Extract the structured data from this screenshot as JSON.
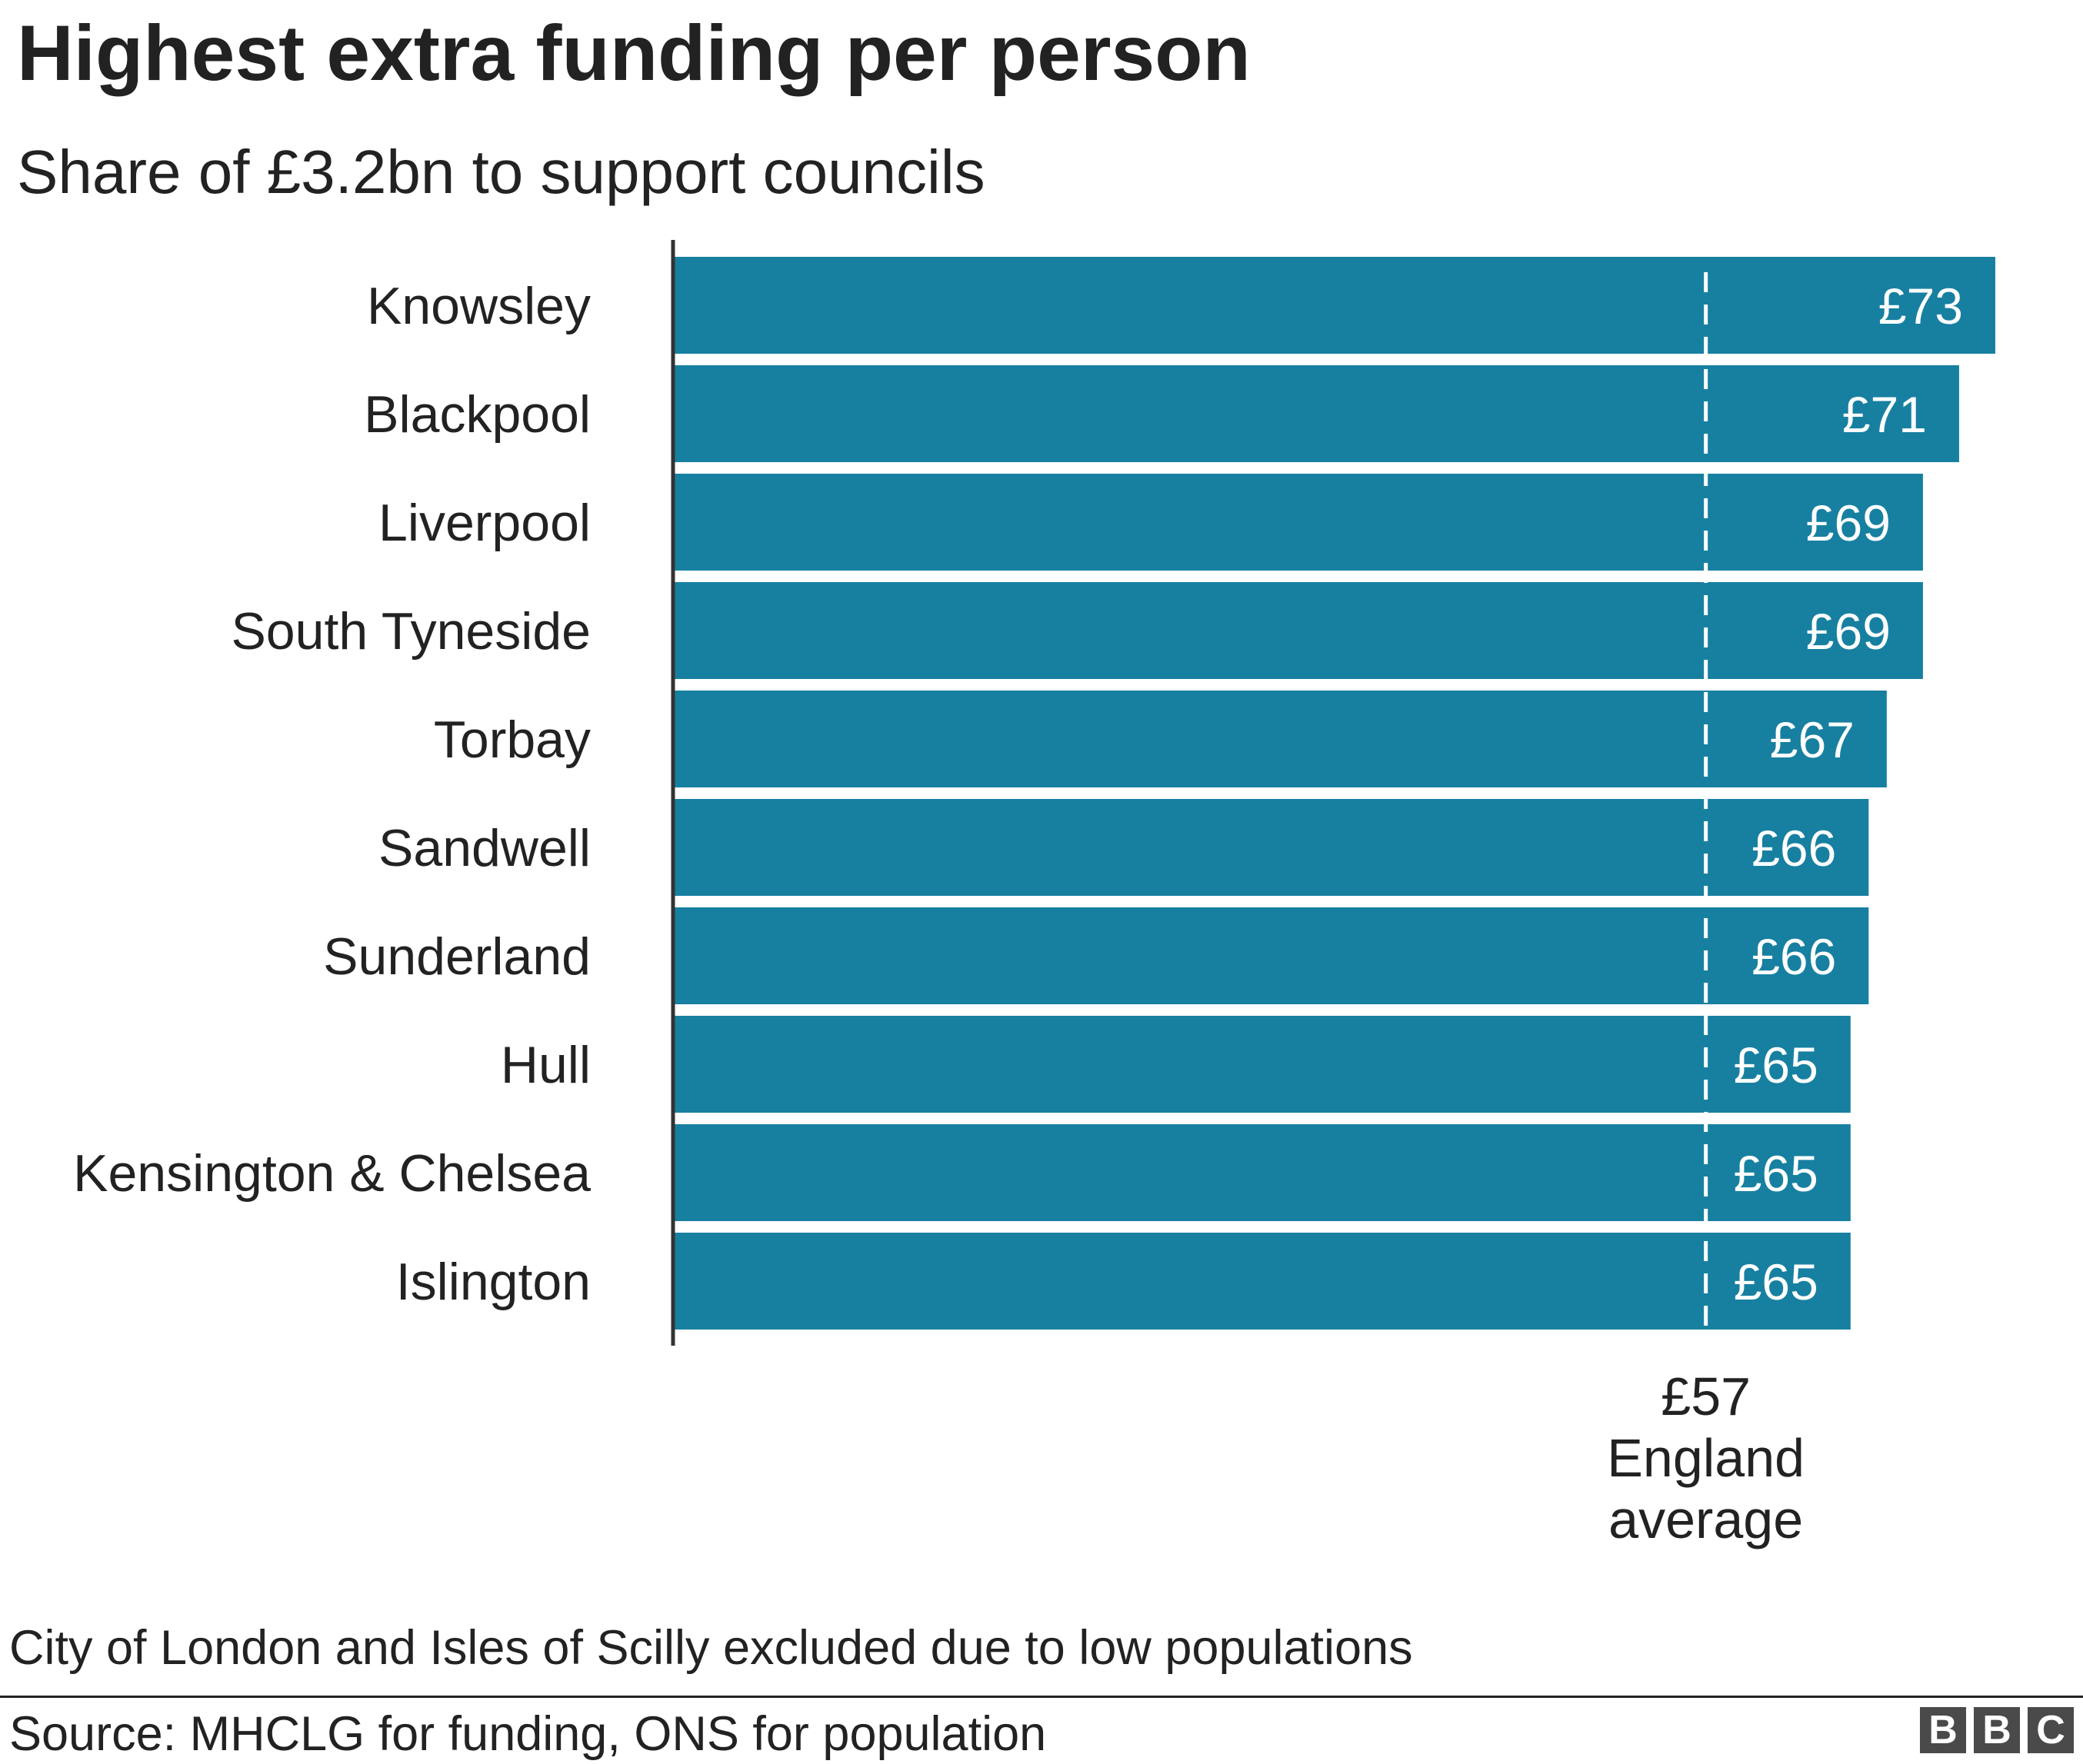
{
  "header": {
    "title": "Highest extra funding per person",
    "subtitle": "Share of £3.2bn to support councils"
  },
  "footer": {
    "note": "City of London and Isles of Scilly excluded due to low populations",
    "source": "Source: MHCLG for funding, ONS for population",
    "logo_letters": [
      "B",
      "B",
      "C"
    ]
  },
  "colors": {
    "bar": "#1780a1",
    "text": "#222222",
    "axis": "#333333",
    "value_label": "#ffffff",
    "reference_line": "#ffffff"
  },
  "chart_data": {
    "type": "bar",
    "orientation": "horizontal",
    "title": "Highest extra funding per person",
    "subtitle": "Share of £3.2bn to support councils",
    "categories": [
      "Knowsley",
      "Blackpool",
      "Liverpool",
      "South Tyneside",
      "Torbay",
      "Sandwell",
      "Sunderland",
      "Hull",
      "Kensington & Chelsea",
      "Islington"
    ],
    "values": [
      73,
      71,
      69,
      69,
      67,
      66,
      66,
      65,
      65,
      65
    ],
    "value_labels": [
      "£73",
      "£71",
      "£69",
      "£69",
      "£67",
      "£66",
      "£66",
      "£65",
      "£65",
      "£65"
    ],
    "xlim": [
      0,
      75
    ],
    "grid": false,
    "reference_line": {
      "value": 57,
      "label_value": "£57",
      "label_text": [
        "England",
        "average"
      ]
    }
  }
}
